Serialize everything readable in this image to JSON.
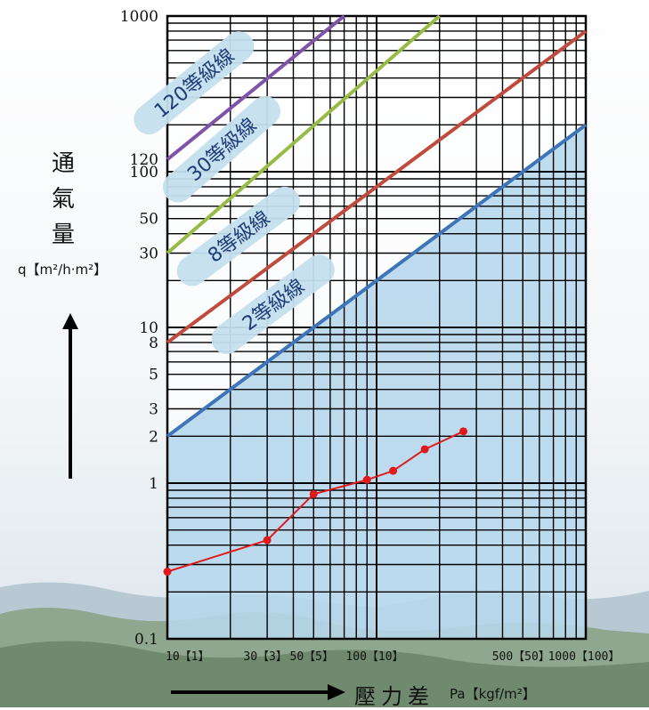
{
  "chart_data": {
    "type": "line",
    "x_scale": "log",
    "y_scale": "log",
    "xlim": [
      10,
      1000
    ],
    "ylim": [
      0.1,
      1000
    ],
    "grid": true,
    "x_ticks": [
      {
        "value": 10,
        "label": "10【1】"
      },
      {
        "value": 30,
        "label": "30【3】"
      },
      {
        "value": 50,
        "label": "50【5】"
      },
      {
        "value": 100,
        "label": "100【10】"
      },
      {
        "value": 500,
        "label": "500【50】"
      },
      {
        "value": 1000,
        "label": "1000【100】"
      }
    ],
    "y_ticks": [
      {
        "value": 1000,
        "label": "1000"
      },
      {
        "value": 120,
        "label": "120"
      },
      {
        "value": 100,
        "label": "100"
      },
      {
        "value": 50,
        "label": "50"
      },
      {
        "value": 30,
        "label": "30"
      },
      {
        "value": 10,
        "label": "10"
      },
      {
        "value": 8,
        "label": "8"
      },
      {
        "value": 5,
        "label": "5"
      },
      {
        "value": 3,
        "label": "3"
      },
      {
        "value": 2,
        "label": "2"
      },
      {
        "value": 1,
        "label": "1"
      },
      {
        "value": 0.1,
        "label": "0.1"
      }
    ],
    "grade_lines": [
      {
        "name": "120等級線",
        "color": "#8052a8",
        "x": [
          10,
          70
        ],
        "y": [
          120,
          1000
        ]
      },
      {
        "name": "30等級線",
        "color": "#97bb44",
        "x": [
          10,
          200
        ],
        "y": [
          30,
          1000
        ]
      },
      {
        "name": "8等級線",
        "color": "#c04a3c",
        "x": [
          10,
          1000
        ],
        "y": [
          8,
          800
        ]
      },
      {
        "name": "2等級線",
        "color": "#3e74b8",
        "x": [
          10,
          1000
        ],
        "y": [
          2,
          200
        ]
      }
    ],
    "shaded_region": {
      "below_line": "2等級線",
      "color": "#a9d0ea"
    },
    "series": [
      {
        "color": "#e0191b",
        "x": [
          10,
          30,
          50,
          90,
          120,
          170,
          260
        ],
        "y": [
          0.27,
          0.43,
          0.85,
          1.05,
          1.2,
          1.65,
          2.15
        ]
      }
    ],
    "y_title": [
      "通",
      "氣",
      "量"
    ],
    "y_unit": "q【m²/h·m²】",
    "x_title": "壓力差",
    "x_unit": "Pa【kgf/m²】"
  }
}
